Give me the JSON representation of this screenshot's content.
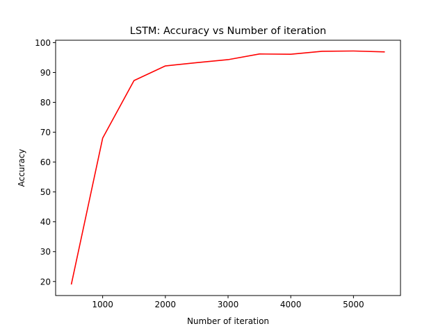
{
  "chart_data": {
    "type": "line",
    "title": "LSTM: Accuracy vs Number of iteration",
    "xlabel": "Number of iteration",
    "ylabel": "Accuracy",
    "xlim": [
      250,
      5750
    ],
    "ylim": [
      15.3,
      100.8
    ],
    "x_ticks": [
      1000,
      2000,
      3000,
      4000,
      5000
    ],
    "y_ticks": [
      20,
      30,
      40,
      50,
      60,
      70,
      80,
      90,
      100
    ],
    "grid": false,
    "legend": "none",
    "series": [
      {
        "color": "#ff0000",
        "x": [
          500,
          1000,
          1500,
          2000,
          2500,
          3000,
          3500,
          4000,
          4500,
          5000,
          5500
        ],
        "y": [
          19,
          68,
          87.3,
          92.2,
          93.3,
          94.3,
          96.2,
          96.1,
          97.1,
          97.2,
          96.9
        ]
      }
    ]
  }
}
